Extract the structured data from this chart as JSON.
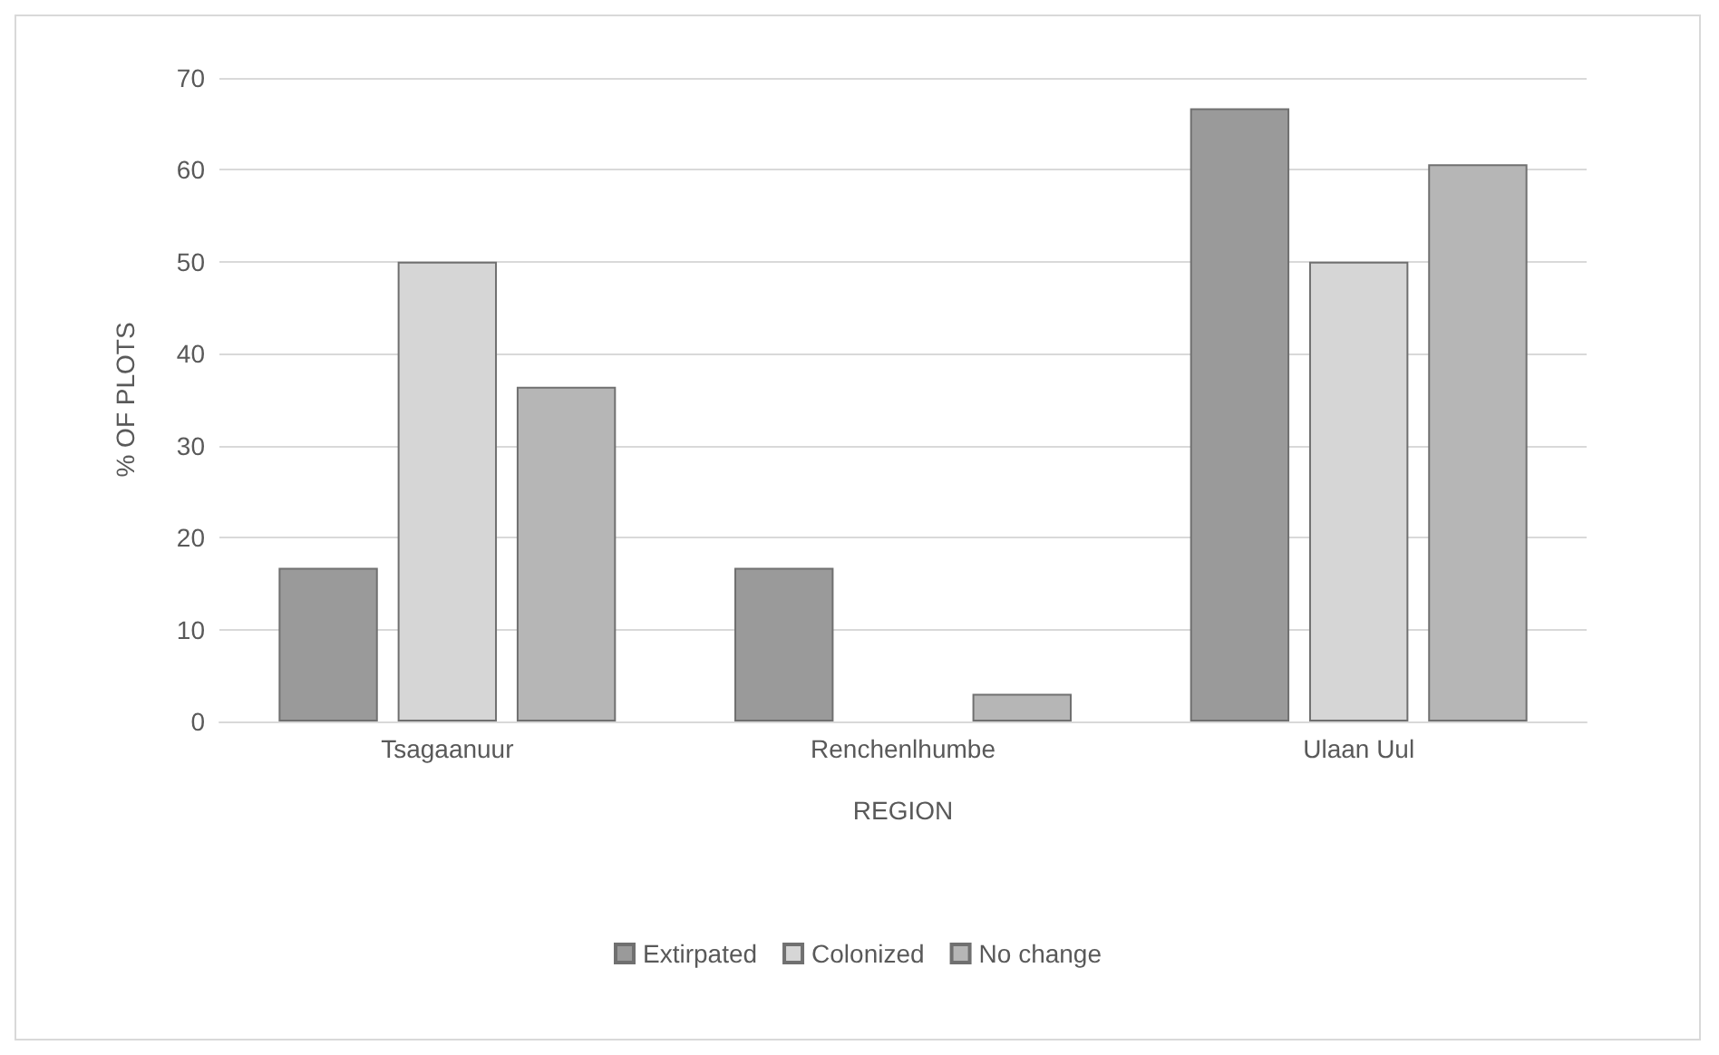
{
  "chart_data": {
    "type": "bar",
    "xlabel": "REGION",
    "ylabel": "% OF PLOTS",
    "categories": [
      "Tsagaanuur",
      "Renchenlhumbe",
      "Ulaan Uul"
    ],
    "series": [
      {
        "name": "Extirpated",
        "color": "#9a9a9a",
        "values": [
          16.7,
          16.7,
          66.7
        ]
      },
      {
        "name": "Colonized",
        "color": "#d6d6d6",
        "values": [
          50,
          0,
          50
        ]
      },
      {
        "name": "No change",
        "color": "#b6b6b6",
        "values": [
          36.4,
          3,
          60.6
        ]
      }
    ],
    "ylim": [
      0,
      70
    ],
    "yticks": [
      0,
      10,
      20,
      30,
      40,
      50,
      60,
      70
    ],
    "grid": "y",
    "legend": "bottom"
  }
}
